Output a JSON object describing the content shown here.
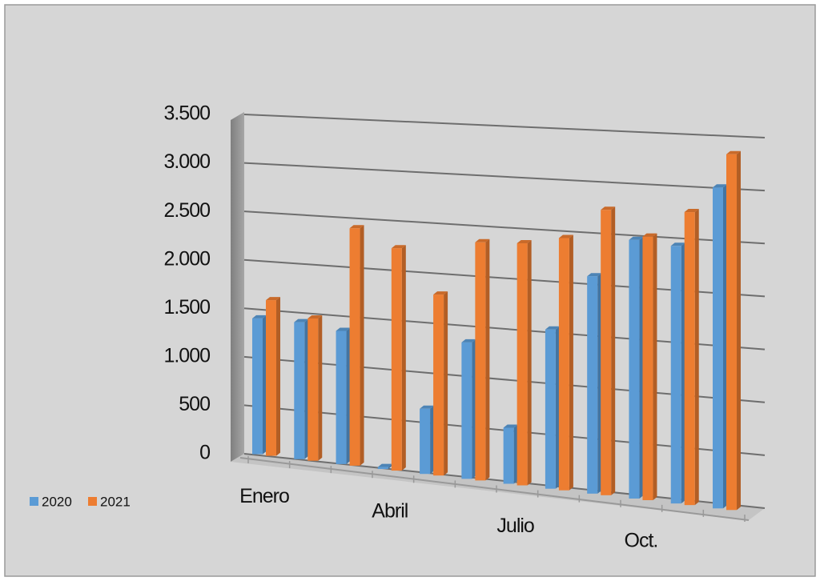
{
  "chart_data": {
    "type": "bar3d",
    "categories": [
      "Enero",
      null,
      null,
      "Abril",
      null,
      null,
      "Julio",
      null,
      null,
      "Oct.",
      null,
      null
    ],
    "series": [
      {
        "name": "2020",
        "color": "#5b9bd5",
        "values": [
          1400,
          1400,
          1350,
          20,
          650,
          1350,
          550,
          1550,
          2100,
          2480,
          2450,
          3030
        ]
      },
      {
        "name": "2021",
        "color": "#ed7d31",
        "values": [
          1600,
          1450,
          2400,
          2230,
          1800,
          2350,
          2370,
          2450,
          2750,
          2520,
          2780,
          3350
        ]
      }
    ],
    "ylim": [
      0,
      3500
    ],
    "yticks": [
      0,
      500,
      {
        "value": 1000,
        "label": "1.000"
      },
      {
        "value": 1500,
        "label": "1.500"
      },
      {
        "value": 2000,
        "label": "2.000"
      },
      {
        "value": 2500,
        "label": "2.500"
      },
      {
        "value": 3000,
        "label": "3.000"
      },
      {
        "value": 3500,
        "label": "3.500"
      }
    ],
    "grid": true,
    "legend": "left"
  }
}
